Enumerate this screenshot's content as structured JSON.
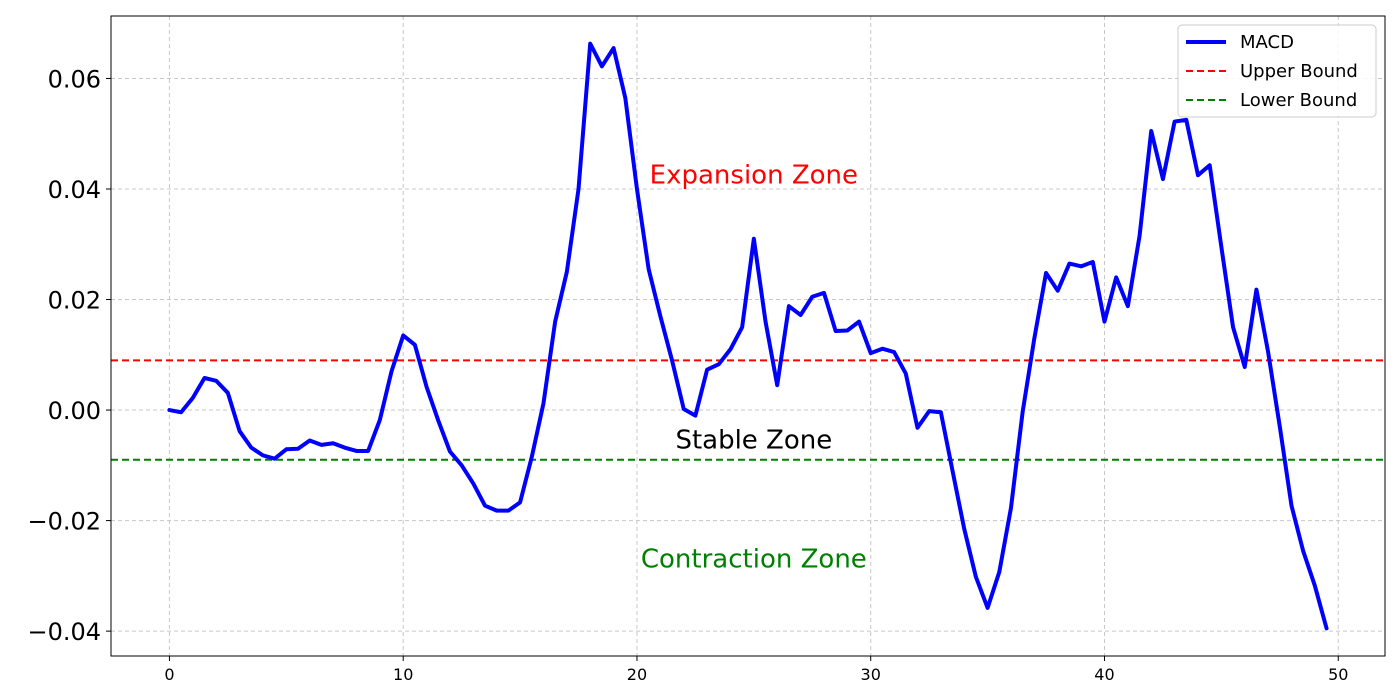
{
  "chart_data": {
    "type": "line",
    "title": "",
    "xlabel": "",
    "ylabel": "",
    "xlim": [
      -2.5,
      52
    ],
    "ylim": [
      -0.0445,
      0.0713
    ],
    "grid": true,
    "legend_position": "top-right",
    "xticks": [
      0,
      10,
      20,
      30,
      40,
      50
    ],
    "xtick_labels": [
      "0",
      "10",
      "20",
      "30",
      "40",
      "50"
    ],
    "yticks": [
      0.06,
      0.04,
      0.02,
      0.0,
      -0.02,
      -0.04
    ],
    "ytick_labels": [
      "0.06",
      "0.04",
      "0.02",
      "0.00",
      "−0.02",
      "−0.04"
    ],
    "series": [
      {
        "name": "MACD",
        "color": "#0000ff",
        "style": "solid",
        "x": [
          0,
          0.5,
          1,
          1.5,
          2,
          2.5,
          3,
          3.5,
          4,
          4.5,
          5,
          5.5,
          6,
          6.5,
          7,
          7.5,
          8,
          8.5,
          9,
          9.5,
          10,
          10.5,
          11,
          11.5,
          12,
          12.5,
          13,
          13.5,
          14,
          14.5,
          15,
          15.5,
          16,
          16.5,
          17,
          17.5,
          18,
          18.5,
          19,
          19.5,
          20,
          20.5,
          21,
          21.5,
          22,
          22.5,
          23,
          23.5,
          24,
          24.5,
          25,
          25.5,
          26,
          26.5,
          27,
          27.5,
          28,
          28.5,
          29,
          29.5,
          30,
          30.5,
          31,
          31.5,
          32,
          32.5,
          33,
          33.5,
          34,
          34.5,
          35,
          35.5,
          36,
          36.5,
          37,
          37.5,
          38,
          38.5,
          39,
          39.5,
          40,
          40.5,
          41,
          41.5,
          42,
          42.5,
          43,
          43.5,
          44,
          44.5,
          45,
          45.5,
          46,
          46.5,
          47,
          47.5,
          48,
          48.5,
          49,
          49.5
        ],
        "y": [
          0.0,
          -0.0004,
          0.0022,
          0.0058,
          0.0053,
          0.0031,
          -0.0038,
          -0.0068,
          -0.0082,
          -0.0088,
          -0.0071,
          -0.007,
          -0.0055,
          -0.0063,
          -0.006,
          -0.0068,
          -0.0074,
          -0.0074,
          -0.0018,
          0.007,
          0.0135,
          0.0118,
          0.0042,
          -0.0019,
          -0.0075,
          -0.01,
          -0.0133,
          -0.0173,
          -0.0182,
          -0.0182,
          -0.0167,
          -0.0085,
          0.0012,
          0.016,
          0.025,
          0.04,
          0.0663,
          0.0622,
          0.0655,
          0.0565,
          0.04,
          0.0255,
          0.017,
          0.009,
          0.0002,
          -0.001,
          0.0073,
          0.0083,
          0.011,
          0.015,
          0.031,
          0.016,
          0.0045,
          0.0188,
          0.0172,
          0.0205,
          0.0212,
          0.0143,
          0.0144,
          0.016,
          0.0103,
          0.0111,
          0.0105,
          0.0066,
          -0.0032,
          -0.0002,
          -0.0004,
          -0.011,
          -0.0215,
          -0.0302,
          -0.0358,
          -0.0293,
          -0.0177,
          -0.0003,
          0.013,
          0.0248,
          0.0216,
          0.0265,
          0.026,
          0.0268,
          0.016,
          0.024,
          0.0188,
          0.0315,
          0.0505,
          0.0418,
          0.0522,
          0.0525,
          0.0425,
          0.0443,
          0.0295,
          0.015,
          0.0078,
          0.0218,
          0.0105,
          -0.003,
          -0.0173,
          -0.0255,
          -0.0318,
          -0.0395
        ]
      },
      {
        "name": "Upper Bound",
        "color": "#ff0000",
        "style": "dashed",
        "y_constant": 0.009
      },
      {
        "name": "Lower Bound",
        "color": "#008000",
        "style": "dashed",
        "y_constant": -0.009
      }
    ],
    "annotations": [
      {
        "text": "Expansion Zone",
        "x": 25,
        "y": 0.041,
        "color": "#ff0000"
      },
      {
        "text": "Stable Zone",
        "x": 25,
        "y": -0.007,
        "color": "#000000"
      },
      {
        "text": "Contraction Zone",
        "x": 25,
        "y": -0.0285,
        "color": "#008000"
      }
    ]
  }
}
